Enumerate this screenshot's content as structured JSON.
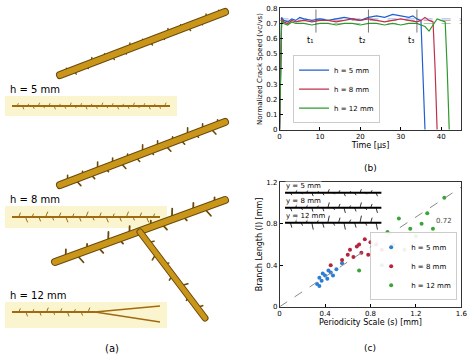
{
  "panel_a": {
    "label": "(a)",
    "images": [
      "h = 5 mm",
      "h = 8 mm",
      "h = 12 mm"
    ]
  },
  "chart_data": [
    {
      "type": "line",
      "label": "(b)",
      "x_label": "Time [μs]",
      "y_label": "Normalized Crack Speed (vc/vs)",
      "xlim": [
        0,
        45
      ],
      "ylim": [
        0,
        0.8
      ],
      "xticks": [
        0,
        10,
        20,
        30,
        40
      ],
      "yticks": [
        0,
        0.1,
        0.2,
        0.3,
        0.4,
        0.5,
        0.6,
        0.7,
        0.8
      ],
      "legend": "bottom left",
      "series": [
        {
          "name": "h = 5 mm",
          "color": "#1f5fd0",
          "line_style": "solid",
          "mean": 0.73,
          "x": [
            0,
            0.5,
            1,
            2,
            3,
            4,
            5,
            6,
            8,
            10,
            12,
            14,
            16,
            18,
            20,
            22,
            24,
            26,
            28,
            30,
            32,
            33,
            34,
            35,
            35.5,
            36
          ],
          "values": [
            0,
            0.74,
            0.72,
            0.71,
            0.73,
            0.72,
            0.74,
            0.73,
            0.72,
            0.73,
            0.72,
            0.73,
            0.74,
            0.73,
            0.72,
            0.74,
            0.75,
            0.74,
            0.76,
            0.75,
            0.74,
            0.75,
            0.73,
            0.72,
            0.4,
            0
          ]
        },
        {
          "name": "h = 8 mm",
          "color": "#c0304a",
          "line_style": "solid",
          "mean": 0.72,
          "x": [
            0,
            0.5,
            1,
            2,
            3,
            4,
            6,
            8,
            10,
            12,
            14,
            16,
            18,
            20,
            22,
            24,
            26,
            28,
            30,
            32,
            34,
            35,
            36,
            37,
            38,
            38.5,
            39
          ],
          "values": [
            0,
            0.73,
            0.71,
            0.7,
            0.72,
            0.71,
            0.72,
            0.71,
            0.72,
            0.72,
            0.71,
            0.72,
            0.73,
            0.72,
            0.73,
            0.72,
            0.71,
            0.72,
            0.73,
            0.72,
            0.71,
            0.72,
            0.74,
            0.72,
            0.71,
            0.4,
            0
          ]
        },
        {
          "name": "h = 12 mm",
          "color": "#2e9a2e",
          "line_style": "solid",
          "mean": 0.7,
          "x": [
            0,
            0.5,
            1,
            2,
            3,
            4,
            6,
            8,
            10,
            12,
            14,
            16,
            18,
            20,
            22,
            24,
            26,
            28,
            30,
            32,
            34,
            36,
            37,
            38,
            39,
            40,
            41,
            41.5,
            42
          ],
          "values": [
            0,
            0.72,
            0.7,
            0.69,
            0.71,
            0.7,
            0.7,
            0.69,
            0.7,
            0.7,
            0.69,
            0.7,
            0.7,
            0.69,
            0.7,
            0.7,
            0.69,
            0.7,
            0.69,
            0.7,
            0.7,
            0.68,
            0.65,
            0.69,
            0.73,
            0.72,
            0.71,
            0.4,
            0
          ]
        }
      ],
      "time_marks": [
        {
          "x": 9,
          "text": "t₁"
        },
        {
          "x": 22,
          "text": "t₂"
        },
        {
          "x": 34,
          "text": "t₃"
        }
      ]
    },
    {
      "type": "scatter",
      "label": "(c)",
      "x_label": "Periodicity Scale (s) [mm]",
      "y_label": "Branch Length (l) [mm]",
      "xlim": [
        0,
        1.6
      ],
      "ylim": [
        0,
        1.2
      ],
      "xticks": [
        0,
        0.4,
        0.8,
        1.2,
        1.6
      ],
      "yticks": [
        0,
        0.4,
        0.8,
        1.2
      ],
      "legend": "bottom right",
      "fit": {
        "slope": 0.72,
        "label": "0.72",
        "line_style": "dashed"
      },
      "insets": [
        "y = 5 mm",
        "y = 8 mm",
        "y = 12 mm"
      ],
      "series": [
        {
          "name": "h = 5 mm",
          "color": "#2a7fd4",
          "marker": "circle",
          "x": [
            0.33,
            0.35,
            0.37,
            0.38,
            0.4,
            0.42,
            0.43,
            0.45,
            0.47,
            0.5,
            0.55,
            0.35
          ],
          "values": [
            0.22,
            0.28,
            0.25,
            0.32,
            0.3,
            0.27,
            0.35,
            0.33,
            0.3,
            0.36,
            0.42,
            0.2
          ]
        },
        {
          "name": "h = 8 mm",
          "color": "#b8233b",
          "marker": "circle",
          "x": [
            0.45,
            0.55,
            0.6,
            0.62,
            0.65,
            0.7,
            0.72,
            0.75,
            0.8,
            0.85,
            0.9,
            0.68,
            0.78
          ],
          "values": [
            0.4,
            0.45,
            0.5,
            0.55,
            0.48,
            0.6,
            0.52,
            0.65,
            0.62,
            0.6,
            0.55,
            0.58,
            0.5
          ]
        },
        {
          "name": "h = 12 mm",
          "color": "#3aa535",
          "marker": "circle",
          "x": [
            0.7,
            0.9,
            1.0,
            1.05,
            1.1,
            1.2,
            1.25,
            1.3,
            1.35,
            1.45,
            0.95,
            1.15
          ],
          "values": [
            0.35,
            0.4,
            0.6,
            0.85,
            0.55,
            0.68,
            0.8,
            0.9,
            0.75,
            1.05,
            0.72,
            0.75
          ]
        }
      ]
    }
  ]
}
